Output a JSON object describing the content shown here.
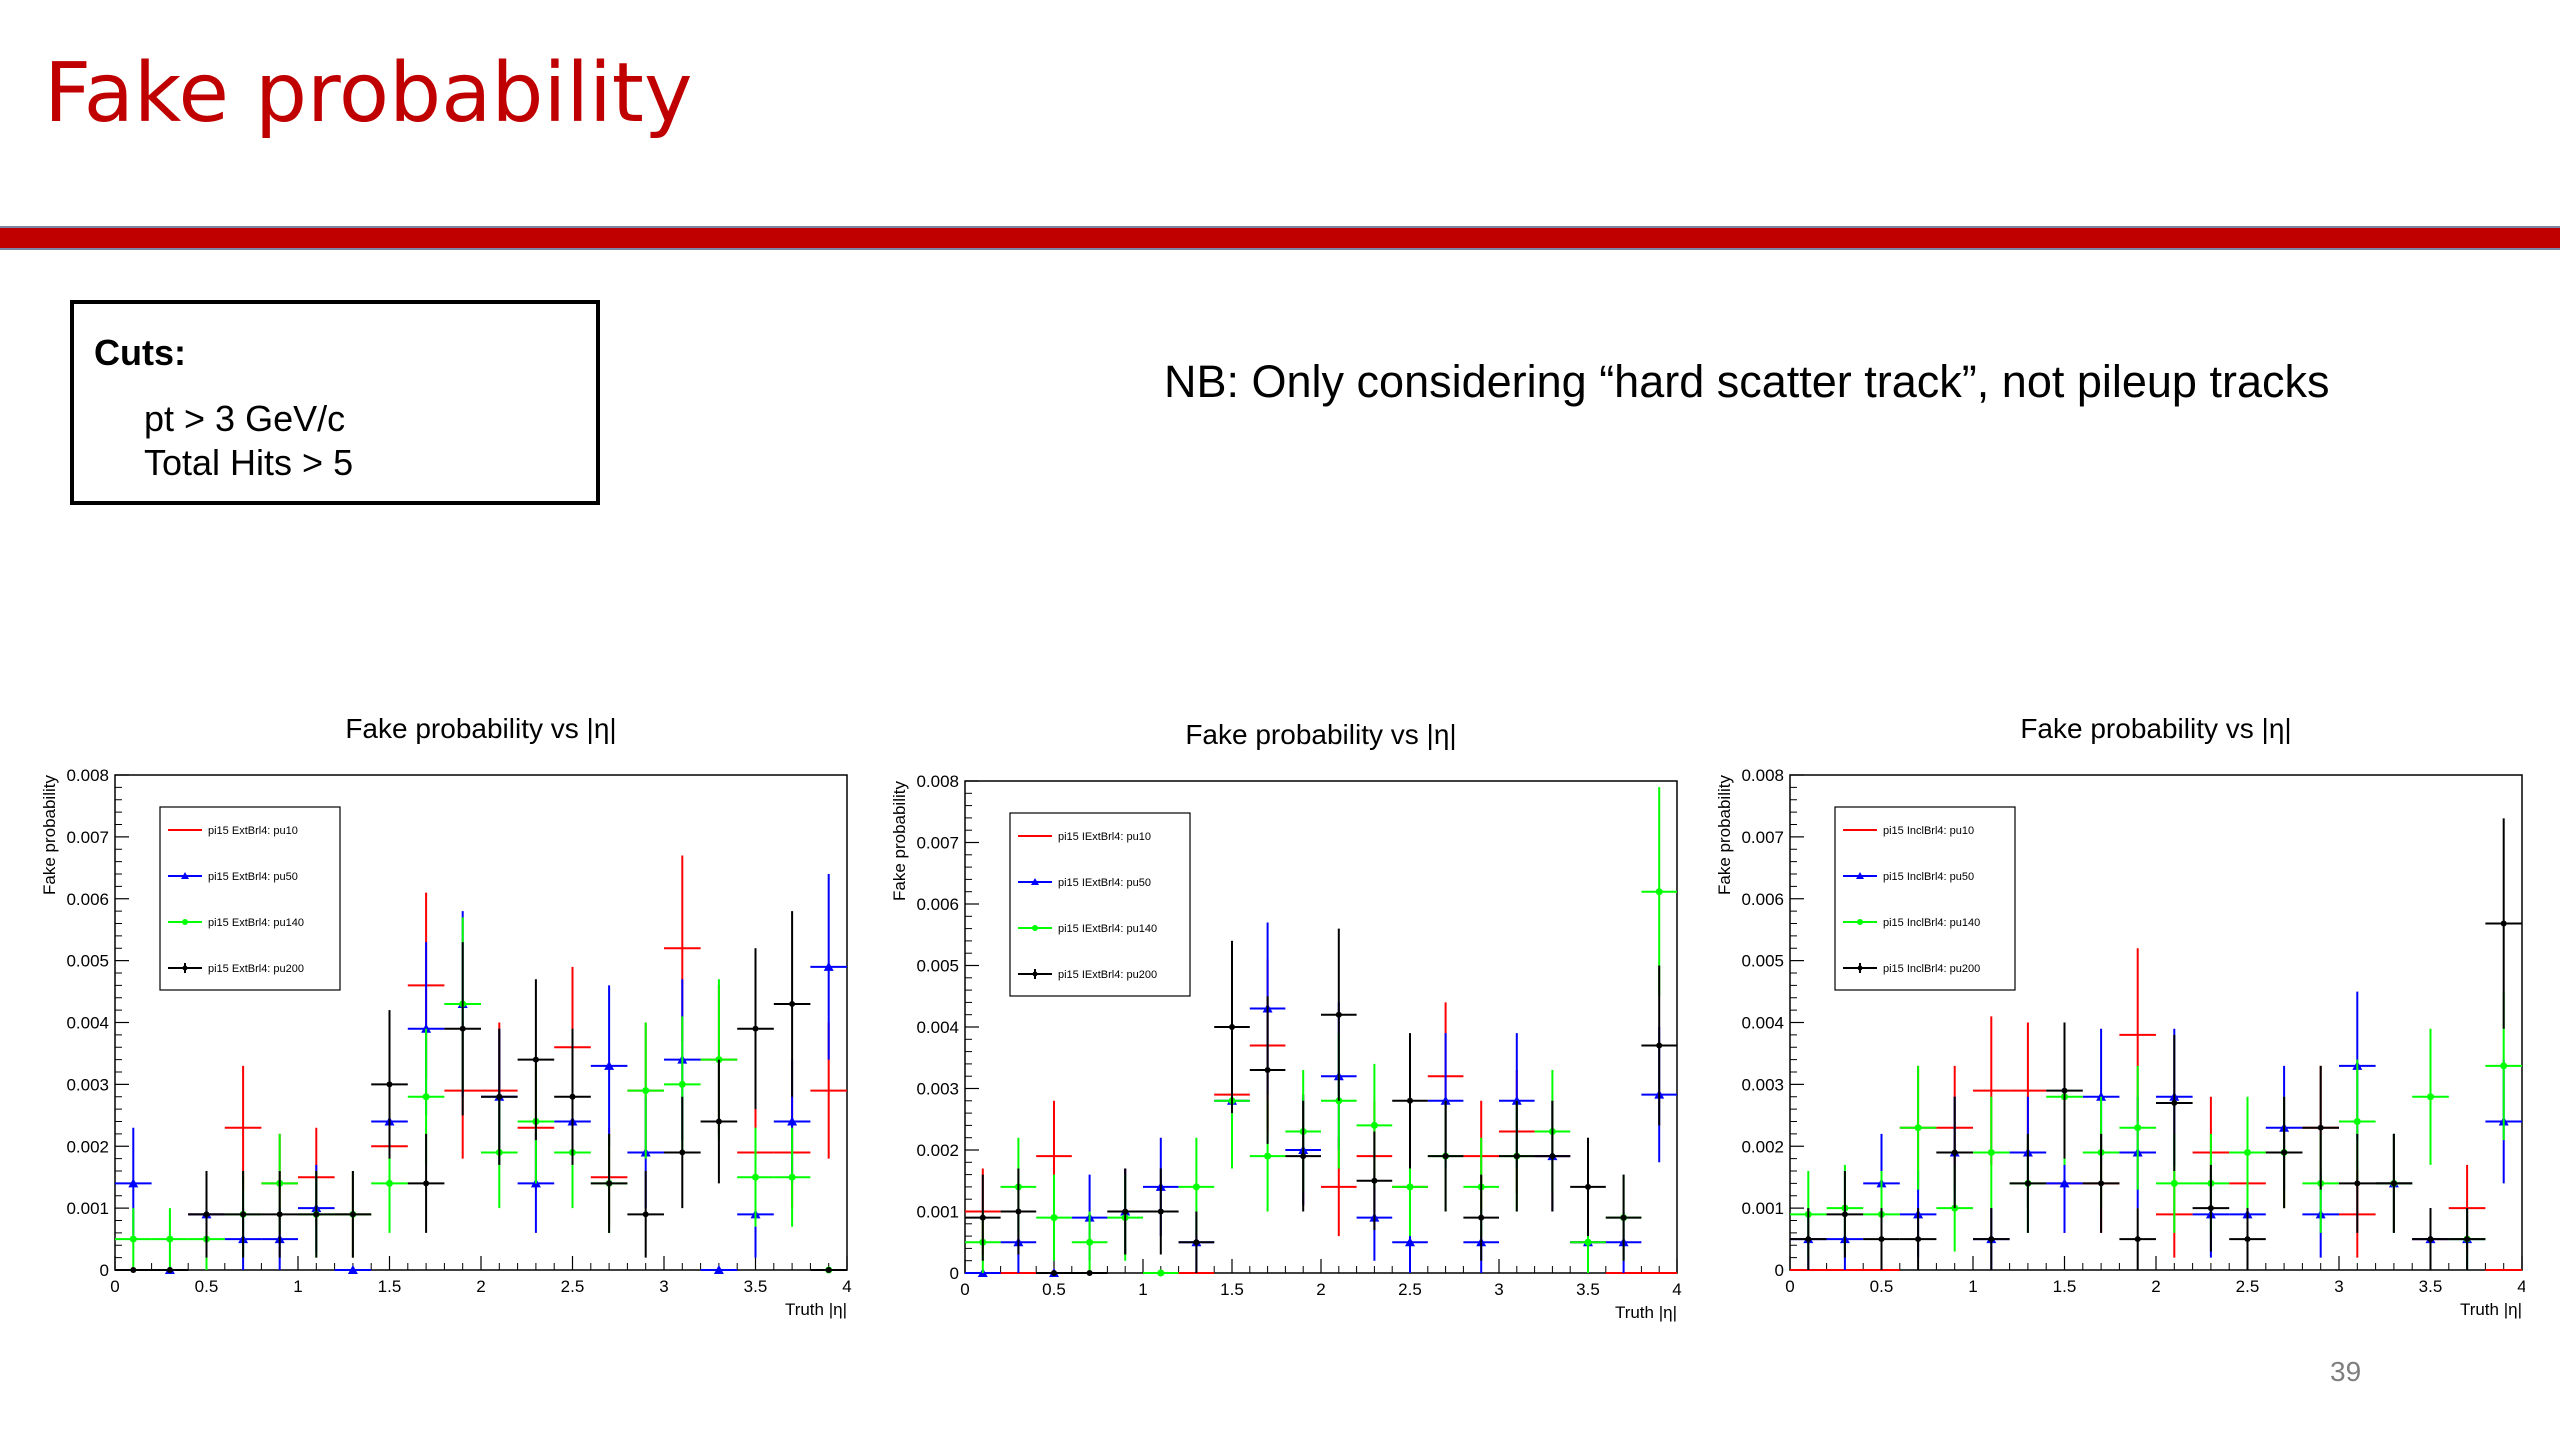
{
  "slide": {
    "title": "Fake probability",
    "cuts_title": "Cuts:",
    "cuts": [
      "pt > 3 GeV/c",
      "Total Hits > 5"
    ],
    "note": "NB: Only considering “hard scatter track”, not pileup tracks",
    "page_number": "39"
  },
  "colors": {
    "title": "#c00000",
    "pu10": "#ff0000",
    "pu50": "#0000ff",
    "pu140": "#00ff00",
    "pu200": "#000000"
  },
  "chart_data": [
    {
      "type": "scatter",
      "title": "Fake probability vs |η|",
      "xlabel": "Truth |η|",
      "ylabel": "Fake probability",
      "xlim": [
        0,
        4
      ],
      "ylim": [
        0,
        0.008
      ],
      "xticks": [
        "0",
        "0.5",
        "1",
        "1.5",
        "2",
        "2.5",
        "3",
        "3.5",
        "4"
      ],
      "yticks": [
        "0",
        "0.001",
        "0.002",
        "0.003",
        "0.004",
        "0.005",
        "0.006",
        "0.007",
        "0.008"
      ],
      "legend_position": "top-left",
      "grid": false,
      "bin_width": 0.2,
      "series": [
        {
          "name": "pi15 ExtBrl4: pu10",
          "color": "#ff0000",
          "marker": "none",
          "x": [
            0.1,
            0.3,
            0.5,
            0.7,
            0.9,
            1.1,
            1.3,
            1.5,
            1.7,
            1.9,
            2.1,
            2.3,
            2.5,
            2.7,
            2.9,
            3.1,
            3.3,
            3.5,
            3.7,
            3.9
          ],
          "y": [
            0,
            0,
            0.0009,
            0.0023,
            0.0014,
            0.0015,
            0.0009,
            0.002,
            0.0046,
            0.0029,
            0.0029,
            0.0023,
            0.0036,
            0.0015,
            0.0029,
            0.0052,
            0.0034,
            0.0019,
            0.0019,
            0.0029
          ],
          "err": [
            0,
            0,
            0.0007,
            0.001,
            0.0008,
            0.0008,
            0.0007,
            0.0009,
            0.0015,
            0.0011,
            0.0011,
            0.001,
            0.0013,
            0.0008,
            0.0011,
            0.0015,
            0.0012,
            0.0009,
            0.0009,
            0.0011
          ]
        },
        {
          "name": "pi15 ExtBrl4: pu50",
          "color": "#0000ff",
          "marker": "triangle",
          "x": [
            0.1,
            0.3,
            0.5,
            0.7,
            0.9,
            1.1,
            1.3,
            1.5,
            1.7,
            1.9,
            2.1,
            2.3,
            2.5,
            2.7,
            2.9,
            3.1,
            3.3,
            3.5,
            3.7,
            3.9
          ],
          "y": [
            0.0014,
            0,
            0.0009,
            0.0005,
            0.0005,
            0.001,
            0,
            0.0024,
            0.0039,
            0.0043,
            0.0028,
            0.0014,
            0.0024,
            0.0033,
            0.0019,
            0.0034,
            0,
            0.0009,
            0.0024,
            0.0049
          ],
          "err": [
            0.0009,
            0,
            0.0007,
            0.0005,
            0.0005,
            0.0007,
            0,
            0.001,
            0.0014,
            0.0015,
            0.0011,
            0.0008,
            0.001,
            0.0013,
            0.0009,
            0.0013,
            0,
            0.0007,
            0.001,
            0.0015
          ]
        },
        {
          "name": "pi15 ExtBrl4: pu140",
          "color": "#00ff00",
          "marker": "dot",
          "x": [
            0.1,
            0.3,
            0.5,
            0.7,
            0.9,
            1.1,
            1.3,
            1.5,
            1.7,
            1.9,
            2.1,
            2.3,
            2.5,
            2.7,
            2.9,
            3.1,
            3.3,
            3.5,
            3.7,
            3.9
          ],
          "y": [
            0.0005,
            0.0005,
            0.0005,
            0.0009,
            0.0014,
            0.0009,
            0.0009,
            0.0014,
            0.0028,
            0.0043,
            0.0019,
            0.0024,
            0.0019,
            0.0014,
            0.0029,
            0.003,
            0.0034,
            0.0015,
            0.0015,
            0
          ],
          "err": [
            0.0005,
            0.0005,
            0.0005,
            0.0007,
            0.0008,
            0.0007,
            0.0007,
            0.0008,
            0.0011,
            0.0014,
            0.0009,
            0.001,
            0.0009,
            0.0008,
            0.0011,
            0.0011,
            0.0013,
            0.0008,
            0.0008,
            0
          ]
        },
        {
          "name": "pi15 ExtBrl4: pu200",
          "color": "#000000",
          "marker": "cross",
          "x": [
            0.1,
            0.3,
            0.5,
            0.7,
            0.9,
            1.1,
            1.3,
            1.5,
            1.7,
            1.9,
            2.1,
            2.3,
            2.5,
            2.7,
            2.9,
            3.1,
            3.3,
            3.5,
            3.7,
            3.9
          ],
          "y": [
            0,
            0,
            0.0009,
            0.0009,
            0.0009,
            0.0009,
            0.0009,
            0.003,
            0.0014,
            0.0039,
            0.0028,
            0.0034,
            0.0028,
            0.0014,
            0.0009,
            0.0019,
            0.0024,
            0.0039,
            0.0043,
            0
          ],
          "err": [
            0,
            0,
            0.0007,
            0.0007,
            0.0007,
            0.0007,
            0.0007,
            0.0012,
            0.0008,
            0.0014,
            0.0011,
            0.0013,
            0.0011,
            0.0008,
            0.0007,
            0.0009,
            0.001,
            0.0013,
            0.0015,
            0
          ]
        }
      ]
    },
    {
      "type": "scatter",
      "title": "Fake probability vs |η|",
      "xlabel": "Truth |η|",
      "ylabel": "Fake probability",
      "xlim": [
        0,
        4
      ],
      "ylim": [
        0,
        0.008
      ],
      "xticks": [
        "0",
        "0.5",
        "1",
        "1.5",
        "2",
        "2.5",
        "3",
        "3.5",
        "4"
      ],
      "yticks": [
        "0",
        "0.001",
        "0.002",
        "0.003",
        "0.004",
        "0.005",
        "0.006",
        "0.007",
        "0.008"
      ],
      "legend_position": "top-left",
      "grid": false,
      "bin_width": 0.2,
      "series": [
        {
          "name": "pi15 IExtBrl4: pu10",
          "color": "#ff0000",
          "marker": "none",
          "x": [
            0.1,
            0.3,
            0.5,
            0.7,
            0.9,
            1.1,
            1.3,
            1.5,
            1.7,
            1.9,
            2.1,
            2.3,
            2.5,
            2.7,
            2.9,
            3.1,
            3.3,
            3.5,
            3.7,
            3.9
          ],
          "y": [
            0.001,
            0,
            0.0019,
            0,
            0.001,
            0,
            0,
            0.0029,
            0.0037,
            0.002,
            0.0014,
            0.0019,
            0.0014,
            0.0032,
            0.0019,
            0.0023,
            0.0019,
            0.0005,
            0,
            0
          ],
          "err": [
            0.0007,
            0,
            0.0009,
            0,
            0.0007,
            0,
            0,
            0.0011,
            0.0014,
            0.0009,
            0.0008,
            0.0009,
            0.0008,
            0.0012,
            0.0009,
            0.001,
            0.0009,
            0.0005,
            0,
            0
          ]
        },
        {
          "name": "pi15 IExtBrl4: pu50",
          "color": "#0000ff",
          "marker": "triangle",
          "x": [
            0.1,
            0.3,
            0.5,
            0.7,
            0.9,
            1.1,
            1.3,
            1.5,
            1.7,
            1.9,
            2.1,
            2.3,
            2.5,
            2.7,
            2.9,
            3.1,
            3.3,
            3.5,
            3.7,
            3.9
          ],
          "y": [
            0,
            0.0005,
            0,
            0.0009,
            0.001,
            0.0014,
            0.0005,
            0.0028,
            0.0043,
            0.002,
            0.0032,
            0.0009,
            0.0005,
            0.0028,
            0.0005,
            0.0028,
            0.0019,
            0.0005,
            0.0005,
            0.0029
          ],
          "err": [
            0,
            0.0005,
            0,
            0.0007,
            0.0007,
            0.0008,
            0.0005,
            0.0011,
            0.0014,
            0.0009,
            0.0012,
            0.0007,
            0.0005,
            0.0011,
            0.0005,
            0.0011,
            0.0009,
            0.0005,
            0.0005,
            0.0011
          ]
        },
        {
          "name": "pi15 IExtBrl4: pu140",
          "color": "#00ff00",
          "marker": "dot",
          "x": [
            0.1,
            0.3,
            0.5,
            0.7,
            0.9,
            1.1,
            1.3,
            1.5,
            1.7,
            1.9,
            2.1,
            2.3,
            2.5,
            2.7,
            2.9,
            3.1,
            3.3,
            3.5,
            3.7,
            3.9
          ],
          "y": [
            0.0005,
            0.0014,
            0.0009,
            0.0005,
            0.0009,
            0,
            0.0014,
            0.0028,
            0.0019,
            0.0023,
            0.0028,
            0.0024,
            0.0014,
            0.0019,
            0.0014,
            0.0019,
            0.0023,
            0.0005,
            0.0009,
            0.0062
          ],
          "err": [
            0.0005,
            0.0008,
            0.0007,
            0.0005,
            0.0007,
            0,
            0.0008,
            0.0011,
            0.0009,
            0.001,
            0.0011,
            0.001,
            0.0008,
            0.0009,
            0.0008,
            0.0009,
            0.001,
            0.0005,
            0.0007,
            0.0017
          ]
        },
        {
          "name": "pi15 IExtBrl4: pu200",
          "color": "#000000",
          "marker": "cross",
          "x": [
            0.1,
            0.3,
            0.5,
            0.7,
            0.9,
            1.1,
            1.3,
            1.5,
            1.7,
            1.9,
            2.1,
            2.3,
            2.5,
            2.7,
            2.9,
            3.1,
            3.3,
            3.5,
            3.7,
            3.9
          ],
          "y": [
            0.0009,
            0.001,
            0,
            0,
            0.001,
            0.001,
            0.0005,
            0.004,
            0.0033,
            0.0019,
            0.0042,
            0.0015,
            0.0028,
            0.0019,
            0.0009,
            0.0019,
            0.0019,
            0.0014,
            0.0009,
            0.0037
          ],
          "err": [
            0.0007,
            0.0007,
            0,
            0,
            0.0007,
            0.0007,
            0.0005,
            0.0014,
            0.0012,
            0.0009,
            0.0014,
            0.0008,
            0.0011,
            0.0009,
            0.0007,
            0.0009,
            0.0009,
            0.0008,
            0.0007,
            0.0013
          ]
        }
      ]
    },
    {
      "type": "scatter",
      "title": "Fake probability vs |η|",
      "xlabel": "Truth |η|",
      "ylabel": "Fake probability",
      "xlim": [
        0,
        4
      ],
      "ylim": [
        0,
        0.008
      ],
      "xticks": [
        "0",
        "0.5",
        "1",
        "1.5",
        "2",
        "2.5",
        "3",
        "3.5",
        "4"
      ],
      "yticks": [
        "0",
        "0.001",
        "0.002",
        "0.003",
        "0.004",
        "0.005",
        "0.006",
        "0.007",
        "0.008"
      ],
      "legend_position": "top-left",
      "grid": false,
      "bin_width": 0.2,
      "series": [
        {
          "name": "pi15 InclBrl4: pu10",
          "color": "#ff0000",
          "marker": "none",
          "x": [
            0.1,
            0.3,
            0.5,
            0.7,
            0.9,
            1.1,
            1.3,
            1.5,
            1.7,
            1.9,
            2.1,
            2.3,
            2.5,
            2.7,
            2.9,
            3.1,
            3.3,
            3.5,
            3.7,
            3.9
          ],
          "y": [
            0,
            0,
            0,
            0.0023,
            0.0023,
            0.0029,
            0.0029,
            0.0014,
            0.0014,
            0.0038,
            0.0009,
            0.0019,
            0.0014,
            0.0019,
            0.0023,
            0.0009,
            0.0014,
            0.0005,
            0.001,
            0
          ],
          "err": [
            0,
            0,
            0,
            0.001,
            0.001,
            0.0012,
            0.0011,
            0.0008,
            0.0008,
            0.0014,
            0.0007,
            0.0009,
            0.0008,
            0.0009,
            0.001,
            0.0007,
            0.0008,
            0.0005,
            0.0007,
            0
          ]
        },
        {
          "name": "pi15 InclBrl4: pu50",
          "color": "#0000ff",
          "marker": "triangle",
          "x": [
            0.1,
            0.3,
            0.5,
            0.7,
            0.9,
            1.1,
            1.3,
            1.5,
            1.7,
            1.9,
            2.1,
            2.3,
            2.5,
            2.7,
            2.9,
            3.1,
            3.3,
            3.5,
            3.7,
            3.9
          ],
          "y": [
            0.0005,
            0.0005,
            0.0014,
            0.0009,
            0.0019,
            0.0005,
            0.0019,
            0.0014,
            0.0028,
            0.0019,
            0.0028,
            0.0009,
            0.0009,
            0.0023,
            0.0009,
            0.0033,
            0.0014,
            0.0005,
            0.0005,
            0.0024
          ],
          "err": [
            0.0005,
            0.0005,
            0.0008,
            0.0007,
            0.0009,
            0.0005,
            0.0009,
            0.0008,
            0.0011,
            0.0009,
            0.0011,
            0.0007,
            0.0007,
            0.001,
            0.0007,
            0.0012,
            0.0008,
            0.0005,
            0.0005,
            0.001
          ]
        },
        {
          "name": "pi15 InclBrl4: pu140",
          "color": "#00ff00",
          "marker": "dot",
          "x": [
            0.1,
            0.3,
            0.5,
            0.7,
            0.9,
            1.1,
            1.3,
            1.5,
            1.7,
            1.9,
            2.1,
            2.3,
            2.5,
            2.7,
            2.9,
            3.1,
            3.3,
            3.5,
            3.7,
            3.9
          ],
          "y": [
            0.0009,
            0.001,
            0.0009,
            0.0023,
            0.001,
            0.0019,
            0.0014,
            0.0028,
            0.0019,
            0.0023,
            0.0014,
            0.0014,
            0.0019,
            0.0019,
            0.0014,
            0.0024,
            0.0014,
            0.0028,
            0.0005,
            0.0033
          ],
          "err": [
            0.0007,
            0.0007,
            0.0007,
            0.001,
            0.0007,
            0.0009,
            0.0008,
            0.0011,
            0.0009,
            0.001,
            0.0008,
            0.0008,
            0.0009,
            0.0009,
            0.0008,
            0.001,
            0.0008,
            0.0011,
            0.0005,
            0.0012
          ]
        },
        {
          "name": "pi15 InclBrl4: pu200",
          "color": "#000000",
          "marker": "cross",
          "x": [
            0.1,
            0.3,
            0.5,
            0.7,
            0.9,
            1.1,
            1.3,
            1.5,
            1.7,
            1.9,
            2.1,
            2.3,
            2.5,
            2.7,
            2.9,
            3.1,
            3.3,
            3.5,
            3.7,
            3.9
          ],
          "y": [
            0.0005,
            0.0009,
            0.0005,
            0.0005,
            0.0019,
            0.0005,
            0.0014,
            0.0029,
            0.0014,
            0.0005,
            0.0027,
            0.001,
            0.0005,
            0.0019,
            0.0023,
            0.0014,
            0.0014,
            0.0005,
            0.0005,
            0.0056
          ],
          "err": [
            0.0005,
            0.0007,
            0.0005,
            0.0005,
            0.0009,
            0.0005,
            0.0008,
            0.0011,
            0.0008,
            0.0005,
            0.0011,
            0.0007,
            0.0005,
            0.0009,
            0.001,
            0.0008,
            0.0008,
            0.0005,
            0.0005,
            0.0017
          ]
        }
      ]
    }
  ]
}
